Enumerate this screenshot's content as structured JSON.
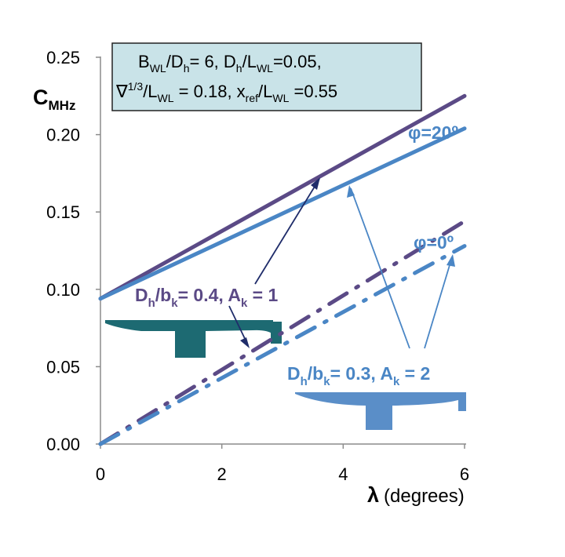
{
  "chart_data": {
    "type": "line",
    "xlim": [
      0,
      6
    ],
    "ylim": [
      0,
      0.25
    ],
    "x_ticks": [
      0,
      2,
      4,
      6
    ],
    "y_ticks": [
      0.0,
      0.05,
      0.1,
      0.15,
      0.2,
      0.25
    ],
    "x_tick_labels": [
      "0",
      "2",
      "4",
      "6"
    ],
    "y_tick_labels": [
      "0.00",
      "0.05",
      "0.10",
      "0.15",
      "0.20",
      "0.25"
    ],
    "ylabel": {
      "main": "C",
      "sub": "MHz"
    },
    "xlabel": {
      "symbol": "λ",
      "unit": "(degrees)"
    },
    "grid": false,
    "params_box": {
      "line1": "B_WL/D_h= 6,  D_h/L_WL=0.05,",
      "line2": "∇^1/3/L_WL = 0.18, x_ref/L_WL =0.55"
    },
    "series": [
      {
        "style": "solid",
        "color": "#5b4a86",
        "x": [
          0,
          6
        ],
        "y": [
          0.094,
          0.225
        ]
      },
      {
        "style": "solid",
        "color": "#4a86c5",
        "x": [
          0,
          6
        ],
        "y": [
          0.094,
          0.204
        ]
      },
      {
        "style": "dashdot",
        "color": "#5b4a86",
        "x": [
          0,
          6
        ],
        "y": [
          0.0,
          0.144
        ]
      },
      {
        "style": "dashdot",
        "color": "#4a86c5",
        "x": [
          0,
          6
        ],
        "y": [
          0.0,
          0.128
        ]
      }
    ],
    "annotations": {
      "phi20": "φ=20º",
      "phi0": "φ=0º",
      "geom_a": {
        "ratio": "D_h/b_k= 0.4,",
        "ak": "A_k = 1"
      },
      "geom_b": {
        "ratio": "D_h/b_k= 0.3,",
        "ak": "A_k = 2"
      }
    },
    "colors": {
      "purple": "#5b4a86",
      "blue": "#4a86c5",
      "axis": "#8c8c8c",
      "box_fill": "#c9e3e8",
      "box_stroke": "#222222",
      "hull_a": "#1d6a72",
      "hull_b": "#5a8ec8"
    }
  }
}
